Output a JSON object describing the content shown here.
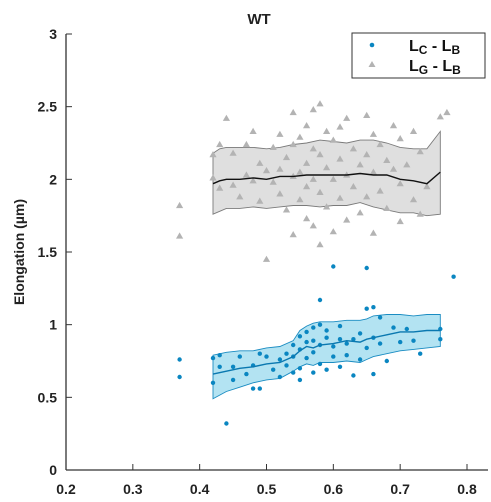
{
  "chart_data": {
    "type": "scatter",
    "title": "WT",
    "xlabel": "",
    "ylabel": "Elongation (µm)",
    "xlim": [
      0.2,
      0.8
    ],
    "ylim": [
      0,
      3
    ],
    "xticks": [
      "0.2",
      "0.3",
      "0.4",
      "0.5",
      "0.6",
      "0.7",
      "0.8"
    ],
    "yticks": [
      "0",
      "0.5",
      "1",
      "1.5",
      "2",
      "2.5",
      "3"
    ],
    "grid": false,
    "legend_position": "top-right",
    "legend": [
      {
        "main": "L",
        "sub1": "C",
        "sep": " - L",
        "sub2": "B",
        "marker": "dot",
        "color": "#0a86c1"
      },
      {
        "main": "L",
        "sub1": "G",
        "sep": " - L",
        "sub2": "B",
        "marker": "triangle",
        "color": "#b3b3b3"
      }
    ],
    "series": [
      {
        "legend": "LC - LB",
        "color": "#0a86c1",
        "band_color": "#a6def0",
        "marker": "dot",
        "points": [
          [
            0.37,
            0.76
          ],
          [
            0.37,
            0.64
          ],
          [
            0.42,
            0.77
          ],
          [
            0.42,
            0.6
          ],
          [
            0.43,
            0.79
          ],
          [
            0.43,
            0.71
          ],
          [
            0.44,
            0.32
          ],
          [
            0.45,
            0.62
          ],
          [
            0.45,
            0.71
          ],
          [
            0.46,
            0.78
          ],
          [
            0.47,
            0.66
          ],
          [
            0.48,
            0.56
          ],
          [
            0.48,
            0.72
          ],
          [
            0.49,
            0.8
          ],
          [
            0.49,
            0.56
          ],
          [
            0.5,
            0.78
          ],
          [
            0.51,
            0.69
          ],
          [
            0.52,
            0.76
          ],
          [
            0.52,
            0.64
          ],
          [
            0.53,
            0.8
          ],
          [
            0.53,
            0.72
          ],
          [
            0.54,
            0.86
          ],
          [
            0.54,
            0.67
          ],
          [
            0.54,
            0.78
          ],
          [
            0.55,
            0.92
          ],
          [
            0.55,
            0.7
          ],
          [
            0.55,
            0.83
          ],
          [
            0.55,
            0.62
          ],
          [
            0.56,
            0.95
          ],
          [
            0.56,
            0.77
          ],
          [
            0.56,
            0.88
          ],
          [
            0.57,
            0.98
          ],
          [
            0.57,
            0.81
          ],
          [
            0.57,
            0.67
          ],
          [
            0.57,
            0.89
          ],
          [
            0.58,
            1.0
          ],
          [
            0.58,
            1.17
          ],
          [
            0.58,
            0.73
          ],
          [
            0.58,
            0.86
          ],
          [
            0.59,
            0.91
          ],
          [
            0.59,
            0.69
          ],
          [
            0.59,
            0.96
          ],
          [
            0.6,
            1.4
          ],
          [
            0.6,
            0.85
          ],
          [
            0.6,
            0.78
          ],
          [
            0.61,
            0.9
          ],
          [
            0.61,
            0.71
          ],
          [
            0.61,
            0.99
          ],
          [
            0.62,
            0.87
          ],
          [
            0.62,
            0.79
          ],
          [
            0.63,
            0.9
          ],
          [
            0.63,
            0.65
          ],
          [
            0.64,
            0.76
          ],
          [
            0.64,
            0.94
          ],
          [
            0.65,
            1.39
          ],
          [
            0.65,
            1.11
          ],
          [
            0.65,
            0.84
          ],
          [
            0.66,
            1.12
          ],
          [
            0.66,
            0.91
          ],
          [
            0.66,
            0.66
          ],
          [
            0.67,
            1.05
          ],
          [
            0.67,
            0.87
          ],
          [
            0.68,
            0.75
          ],
          [
            0.69,
            0.98
          ],
          [
            0.7,
            0.88
          ],
          [
            0.71,
            0.97
          ],
          [
            0.72,
            0.89
          ],
          [
            0.73,
            0.8
          ],
          [
            0.76,
            0.97
          ],
          [
            0.76,
            0.9
          ],
          [
            0.78,
            1.33
          ]
        ],
        "mean_line": {
          "x": [
            0.42,
            0.44,
            0.46,
            0.48,
            0.5,
            0.52,
            0.54,
            0.55,
            0.56,
            0.57,
            0.58,
            0.6,
            0.62,
            0.64,
            0.65,
            0.66,
            0.68,
            0.7,
            0.72,
            0.74,
            0.76
          ],
          "y": [
            0.66,
            0.68,
            0.7,
            0.71,
            0.73,
            0.74,
            0.78,
            0.82,
            0.85,
            0.84,
            0.86,
            0.87,
            0.89,
            0.88,
            0.9,
            0.91,
            0.93,
            0.95,
            0.95,
            0.96,
            0.96
          ]
        },
        "band_upper": [
          0.79,
          0.81,
          0.82,
          0.82,
          0.84,
          0.85,
          0.89,
          0.96,
          0.99,
          1.01,
          1.02,
          1.02,
          1.03,
          1.03,
          1.04,
          1.06,
          1.07,
          1.07,
          1.06,
          1.07,
          1.07
        ],
        "band_lower": [
          0.49,
          0.54,
          0.57,
          0.6,
          0.62,
          0.63,
          0.68,
          0.71,
          0.73,
          0.72,
          0.74,
          0.74,
          0.75,
          0.74,
          0.76,
          0.78,
          0.8,
          0.82,
          0.83,
          0.84,
          0.85
        ]
      },
      {
        "legend": "LG - LB",
        "color": "#b3b3b3",
        "band_color": "#d9d9d9",
        "marker": "triangle",
        "points": [
          [
            0.37,
            1.82
          ],
          [
            0.37,
            1.61
          ],
          [
            0.42,
            2.17
          ],
          [
            0.42,
            2.01
          ],
          [
            0.43,
            2.24
          ],
          [
            0.43,
            1.94
          ],
          [
            0.44,
            2.42
          ],
          [
            0.45,
            1.96
          ],
          [
            0.45,
            2.18
          ],
          [
            0.46,
            1.88
          ],
          [
            0.47,
            2.24
          ],
          [
            0.47,
            2.03
          ],
          [
            0.48,
            1.99
          ],
          [
            0.48,
            2.33
          ],
          [
            0.49,
            2.11
          ],
          [
            0.49,
            1.85
          ],
          [
            0.5,
            2.06
          ],
          [
            0.5,
            1.45
          ],
          [
            0.51,
            2.22
          ],
          [
            0.51,
            1.98
          ],
          [
            0.52,
            2.31
          ],
          [
            0.52,
            2.07
          ],
          [
            0.52,
            1.9
          ],
          [
            0.53,
            2.15
          ],
          [
            0.53,
            1.79
          ],
          [
            0.54,
            2.02
          ],
          [
            0.54,
            2.46
          ],
          [
            0.54,
            2.24
          ],
          [
            0.54,
            1.62
          ],
          [
            0.55,
            2.05
          ],
          [
            0.55,
            2.29
          ],
          [
            0.55,
            1.86
          ],
          [
            0.56,
            2.11
          ],
          [
            0.56,
            2.37
          ],
          [
            0.56,
            1.95
          ],
          [
            0.56,
            1.73
          ],
          [
            0.57,
            2.21
          ],
          [
            0.57,
            2.48
          ],
          [
            0.57,
            2.0
          ],
          [
            0.57,
            1.68
          ],
          [
            0.58,
            2.17
          ],
          [
            0.58,
            2.52
          ],
          [
            0.58,
            1.91
          ],
          [
            0.58,
            1.55
          ],
          [
            0.59,
            2.08
          ],
          [
            0.59,
            2.33
          ],
          [
            0.59,
            1.81
          ],
          [
            0.6,
            2.27
          ],
          [
            0.6,
            2.0
          ],
          [
            0.6,
            1.64
          ],
          [
            0.61,
            2.14
          ],
          [
            0.61,
            2.36
          ],
          [
            0.61,
            1.87
          ],
          [
            0.62,
            2.42
          ],
          [
            0.62,
            2.03
          ],
          [
            0.62,
            1.72
          ],
          [
            0.63,
            2.21
          ],
          [
            0.63,
            1.95
          ],
          [
            0.64,
            2.1
          ],
          [
            0.64,
            1.77
          ],
          [
            0.65,
            2.44
          ],
          [
            0.65,
            2.17
          ],
          [
            0.65,
            1.88
          ],
          [
            0.66,
            2.05
          ],
          [
            0.66,
            2.31
          ],
          [
            0.66,
            1.63
          ],
          [
            0.67,
            2.24
          ],
          [
            0.67,
            1.92
          ],
          [
            0.68,
            2.13
          ],
          [
            0.68,
            1.8
          ],
          [
            0.69,
            2.37
          ],
          [
            0.69,
            2.07
          ],
          [
            0.7,
            2.28
          ],
          [
            0.7,
            1.97
          ],
          [
            0.7,
            1.71
          ],
          [
            0.71,
            2.1
          ],
          [
            0.72,
            2.33
          ],
          [
            0.72,
            1.86
          ],
          [
            0.73,
            2.19
          ],
          [
            0.73,
            1.76
          ],
          [
            0.74,
            1.95
          ],
          [
            0.76,
            2.43
          ],
          [
            0.77,
            2.46
          ]
        ],
        "mean_line": {
          "x": [
            0.42,
            0.43,
            0.44,
            0.46,
            0.48,
            0.5,
            0.52,
            0.54,
            0.56,
            0.58,
            0.6,
            0.62,
            0.64,
            0.66,
            0.68,
            0.7,
            0.72,
            0.74,
            0.76
          ],
          "y": [
            1.97,
            1.99,
            2.0,
            2.0,
            2.01,
            2.0,
            2.02,
            2.02,
            2.03,
            2.03,
            2.03,
            2.03,
            2.04,
            2.03,
            2.03,
            2.0,
            1.99,
            1.97,
            2.05
          ]
        },
        "band_upper": [
          2.18,
          2.21,
          2.22,
          2.22,
          2.22,
          2.21,
          2.22,
          2.24,
          2.25,
          2.27,
          2.26,
          2.25,
          2.27,
          2.27,
          2.25,
          2.22,
          2.21,
          2.21,
          2.33
        ],
        "band_lower": [
          1.76,
          1.78,
          1.8,
          1.8,
          1.81,
          1.8,
          1.81,
          1.82,
          1.82,
          1.81,
          1.82,
          1.82,
          1.84,
          1.81,
          1.79,
          1.77,
          1.77,
          1.75,
          1.76
        ]
      }
    ]
  }
}
